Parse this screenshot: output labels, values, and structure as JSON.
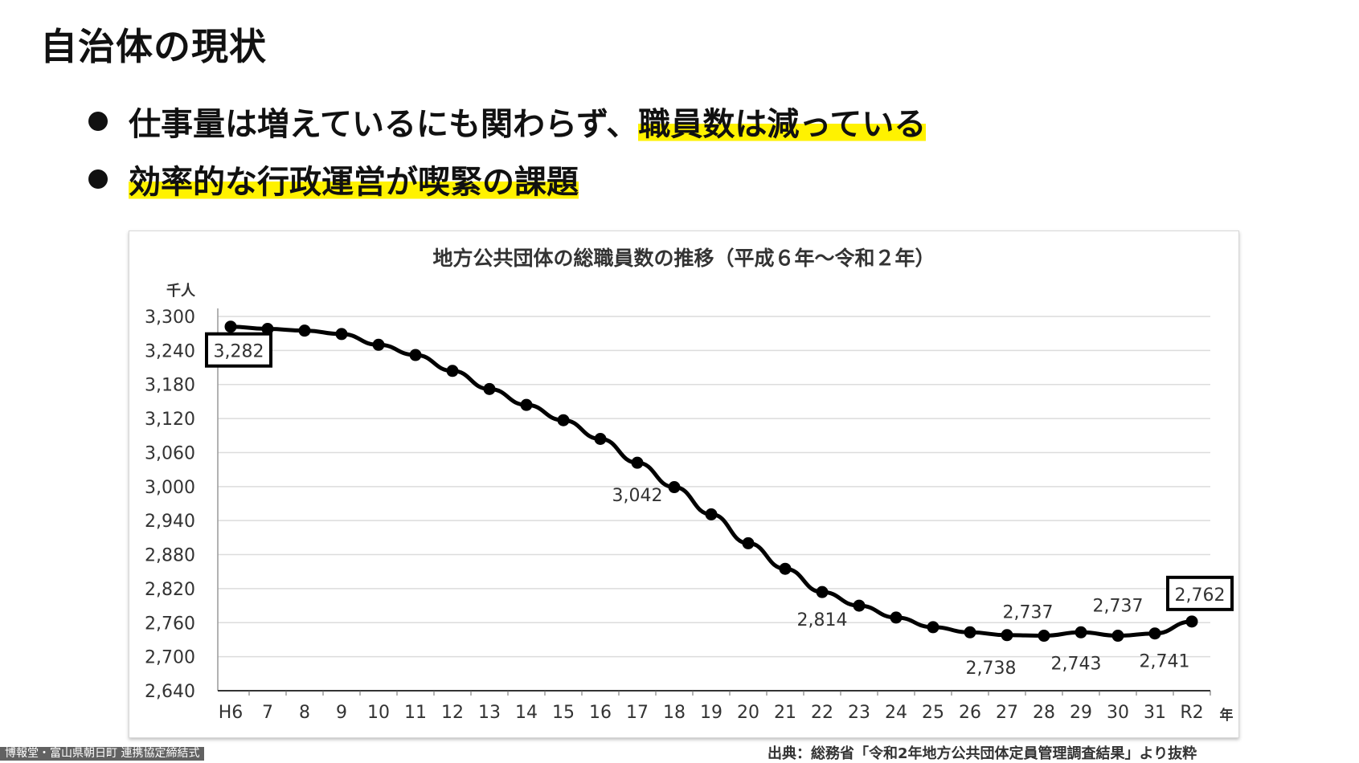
{
  "slide": {
    "title": "自治体の現状",
    "bullets": [
      {
        "plain": "仕事量は増えているにも関わらず、",
        "highlight": "職員数は減っている"
      },
      {
        "plain": "",
        "highlight": "効率的な行政運営が喫緊の課題"
      }
    ]
  },
  "chart_data": {
    "type": "line",
    "title": "地方公共団体の総職員数の推移（平成６年～令和２年）",
    "ylabel": "千人",
    "xlabel": "年",
    "ylim": [
      2640,
      3300
    ],
    "yticks": [
      3300,
      3240,
      3180,
      3120,
      3060,
      3000,
      2940,
      2880,
      2820,
      2760,
      2700,
      2640
    ],
    "ytick_labels": [
      "3,300",
      "3,240",
      "3,180",
      "3,120",
      "3,060",
      "3,000",
      "2,940",
      "2,880",
      "2,820",
      "2,760",
      "2,700",
      "2,640"
    ],
    "categories": [
      "H6",
      "7",
      "8",
      "9",
      "10",
      "11",
      "12",
      "13",
      "14",
      "15",
      "16",
      "17",
      "18",
      "19",
      "20",
      "21",
      "22",
      "23",
      "24",
      "25",
      "26",
      "27",
      "28",
      "29",
      "30",
      "31",
      "R2"
    ],
    "values": [
      3282,
      3278,
      3275,
      3269,
      3250,
      3232,
      3204,
      3172,
      3144,
      3117,
      3084,
      3042,
      2999,
      2951,
      2900,
      2855,
      2814,
      2790,
      2769,
      2752,
      2743,
      2738,
      2737,
      2743,
      2737,
      2741,
      2762
    ],
    "grid": true,
    "data_labels": [
      {
        "index": 0,
        "text": "3,282",
        "boxed": true
      },
      {
        "index": 11,
        "text": "3,042",
        "boxed": false
      },
      {
        "index": 16,
        "text": "2,814",
        "boxed": false
      },
      {
        "index": 21,
        "text": "2,738",
        "boxed": false
      },
      {
        "index": 22,
        "text": "2,737",
        "boxed": false
      },
      {
        "index": 23,
        "text": "2,743",
        "boxed": false
      },
      {
        "index": 24,
        "text": "2,737",
        "boxed": false
      },
      {
        "index": 25,
        "text": "2,741",
        "boxed": false
      },
      {
        "index": 26,
        "text": "2,762",
        "boxed": true
      }
    ]
  },
  "source": "出典：総務省「令和2年地方公共団体定員管理調査結果」より抜粋",
  "caption": "博報堂・富山県朝日町 連携協定締結式"
}
